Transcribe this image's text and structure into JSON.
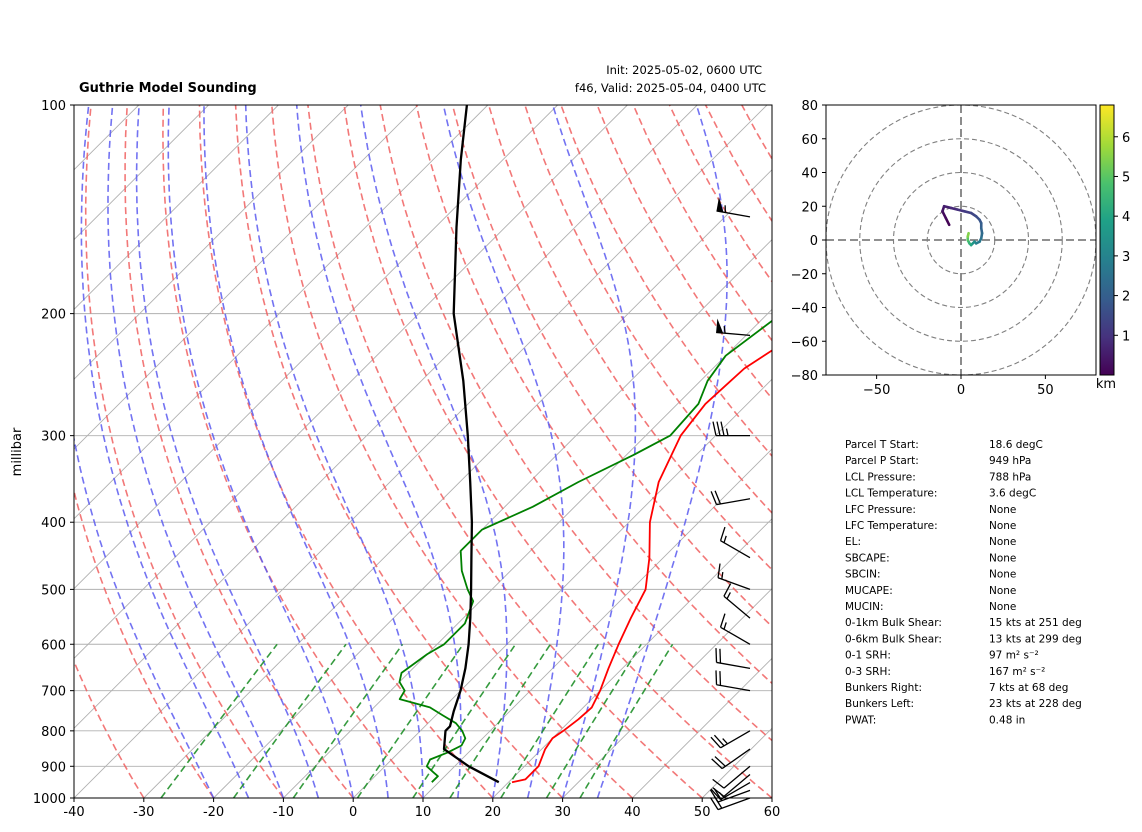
{
  "header": {
    "title": "Guthrie Model Sounding",
    "init": "Init: 2025-05-02, 0600 UTC",
    "valid": "f46, Valid: 2025-05-04, 0400 UTC"
  },
  "chart_data": [
    {
      "type": "line",
      "kind": "skew-t",
      "ylabel": "millibar",
      "xlim": [
        -40,
        60
      ],
      "ylim": [
        1000,
        100
      ],
      "y_scale": "log",
      "x_ticks": [
        -40,
        -30,
        -20,
        -10,
        0,
        10,
        20,
        30,
        40,
        50,
        60
      ],
      "x_tick_labels": [
        "-40",
        "-30",
        "-20",
        "-10",
        "0",
        "10",
        "20",
        "30",
        "40",
        "50",
        "60"
      ],
      "y_ticks": [
        1000,
        900,
        800,
        700,
        600,
        500,
        400,
        300,
        200,
        100
      ],
      "y_tick_labels": [
        "1000",
        "900",
        "800",
        "700",
        "600",
        "500",
        "400",
        "300",
        "200",
        "100"
      ],
      "grid": true,
      "series": [
        {
          "role": "temperature",
          "color": "#ff0000",
          "p": [
            949,
            940,
            900,
            850,
            820,
            800,
            770,
            740,
            700,
            650,
            600,
            550,
            500,
            450,
            400,
            350,
            300,
            270,
            240,
            220,
            200,
            180,
            160,
            140,
            120,
            100
          ],
          "t": [
            20.5,
            22,
            22,
            20.5,
            20,
            20.5,
            21,
            21.2,
            20,
            18,
            16,
            14,
            12,
            8,
            3,
            -1.5,
            -5,
            -6,
            -5.5,
            -3.5,
            0,
            4,
            8,
            13,
            18.5,
            25
          ]
        },
        {
          "role": "dewpoint",
          "color": "#008000",
          "p": [
            949,
            930,
            920,
            900,
            880,
            860,
            840,
            820,
            800,
            780,
            760,
            740,
            720,
            700,
            680,
            660,
            620,
            600,
            560,
            520,
            500,
            470,
            440,
            410,
            380,
            350,
            320,
            300,
            270,
            250,
            230,
            200,
            180,
            160,
            140,
            120,
            100
          ],
          "t": [
            9,
            9,
            8,
            6,
            5.5,
            7,
            8,
            7.5,
            6,
            4,
            1,
            -2,
            -7.5,
            -8,
            -10,
            -11,
            -10,
            -9,
            -9,
            -11,
            -13.5,
            -17,
            -20,
            -20,
            -16,
            -13,
            -9,
            -6.5,
            -7,
            -9,
            -10,
            -8,
            -6,
            -5,
            -4,
            -3,
            1
          ]
        },
        {
          "role": "parcel",
          "color": "#000000",
          "p": [
            949,
            900,
            850,
            800,
            788,
            750,
            700,
            650,
            600,
            550,
            500,
            450,
            400,
            350,
            300,
            250,
            200,
            150,
            120,
            100
          ],
          "t": [
            18.6,
            12,
            6,
            3.6,
            3.6,
            2,
            0,
            -2.5,
            -5.5,
            -9,
            -13,
            -17.5,
            -22.5,
            -28.5,
            -35.5,
            -44,
            -55,
            -67,
            -76,
            -83
          ]
        }
      ],
      "dry_adiabats_theta_c": [
        -30,
        -20,
        -10,
        0,
        10,
        20,
        30,
        40,
        50,
        60,
        70,
        80,
        90,
        100,
        110,
        120,
        130,
        140,
        150,
        160,
        170,
        180,
        190
      ],
      "moist_adiabats_t_c": [
        -20,
        -15,
        -10,
        -5,
        0,
        5,
        10,
        15,
        20,
        25,
        30,
        35
      ],
      "mixing_ratios_g_kg": [
        0.4,
        1,
        2,
        4,
        7,
        10,
        16,
        24,
        32
      ],
      "freezing_isotherm_c": 0,
      "wind_barbs": [
        {
          "p": 1000,
          "speed": 20,
          "dir": 250
        },
        {
          "p": 975,
          "speed": 20,
          "dir": 250
        },
        {
          "p": 950,
          "speed": 15,
          "dir": 240
        },
        {
          "p": 925,
          "speed": 10,
          "dir": 230
        },
        {
          "p": 900,
          "speed": 10,
          "dir": 230
        },
        {
          "p": 850,
          "speed": 20,
          "dir": 235
        },
        {
          "p": 800,
          "speed": 25,
          "dir": 240
        },
        {
          "p": 700,
          "speed": 20,
          "dir": 280
        },
        {
          "p": 650,
          "speed": 20,
          "dir": 280
        },
        {
          "p": 600,
          "speed": 15,
          "dir": 300
        },
        {
          "p": 550,
          "speed": 15,
          "dir": 310
        },
        {
          "p": 500,
          "speed": 15,
          "dir": 290
        },
        {
          "p": 450,
          "speed": 15,
          "dir": 300
        },
        {
          "p": 370,
          "speed": 20,
          "dir": 260
        },
        {
          "p": 300,
          "speed": 35,
          "dir": 270
        },
        {
          "p": 215,
          "speed": 55,
          "dir": 275
        },
        {
          "p": 145,
          "speed": 55,
          "dir": 280
        }
      ]
    },
    {
      "type": "line",
      "kind": "hodograph",
      "xlim": [
        -80,
        80
      ],
      "ylim": [
        -80,
        80
      ],
      "x_ticks": [
        -50,
        0,
        50
      ],
      "x_tick_labels": [
        "−50",
        "0",
        "50"
      ],
      "y_ticks": [
        80,
        60,
        40,
        20,
        0,
        -20,
        -40,
        -60,
        -80
      ],
      "y_tick_labels": [
        "80",
        "60",
        "40",
        "20",
        "0",
        "−20",
        "−40",
        "−60",
        "−80"
      ],
      "range_rings": [
        20,
        40,
        60,
        80
      ],
      "colorbar": {
        "label": "km",
        "min": 0,
        "max": 6.8,
        "ticks": [
          1,
          2,
          3,
          4,
          5,
          6
        ],
        "tick_labels": [
          "1",
          "2",
          "3",
          "4",
          "5",
          "6"
        ],
        "colormap": "viridis"
      },
      "u": [
        -7,
        -9,
        -11,
        -10,
        -6,
        -2,
        2,
        6,
        9,
        11,
        12,
        12,
        12.5,
        12,
        11,
        9,
        8,
        7,
        6,
        5,
        4,
        4,
        4.5
      ],
      "v": [
        9,
        13,
        17,
        20,
        19,
        18,
        17,
        16,
        14,
        12,
        10,
        7,
        4,
        1,
        -1,
        -2,
        -1,
        -2,
        -3,
        -2,
        0,
        2,
        4
      ],
      "h": [
        0.05,
        0.2,
        0.4,
        0.6,
        0.8,
        1.0,
        1.2,
        1.4,
        1.6,
        1.8,
        2.0,
        2.2,
        2.4,
        2.6,
        2.8,
        3.0,
        3.3,
        3.6,
        4.0,
        4.5,
        5.0,
        5.5,
        6.0
      ]
    }
  ],
  "parameters": [
    {
      "label": "Parcel T Start:",
      "value": "18.6 degC"
    },
    {
      "label": "Parcel P Start:",
      "value": "949 hPa"
    },
    {
      "label": "LCL Pressure:",
      "value": "788 hPa"
    },
    {
      "label": "LCL Temperature:",
      "value": "3.6 degC"
    },
    {
      "label": "LFC Pressure:",
      "value": "None"
    },
    {
      "label": "LFC Temperature:",
      "value": "None"
    },
    {
      "label": "EL:",
      "value": "None"
    },
    {
      "label": "SBCAPE:",
      "value": "None"
    },
    {
      "label": "SBCIN:",
      "value": "None"
    },
    {
      "label": "MUCAPE:",
      "value": "None"
    },
    {
      "label": "MUCIN:",
      "value": "None"
    },
    {
      "label": "0-1km Bulk Shear:",
      "value": "15 kts at 251 deg"
    },
    {
      "label": "0-6km Bulk Shear:",
      "value": "13 kts at 299 deg"
    },
    {
      "label": "0-1 SRH:",
      "value": "97 m² s⁻²"
    },
    {
      "label": "0-3 SRH:",
      "value": "167 m² s⁻²"
    },
    {
      "label": "Bunkers Right:",
      "value": "7 kts at 68 deg"
    },
    {
      "label": "Bunkers Left:",
      "value": "23 kts at 228 deg"
    },
    {
      "label": "PWAT:",
      "value": "0.48 in"
    }
  ]
}
